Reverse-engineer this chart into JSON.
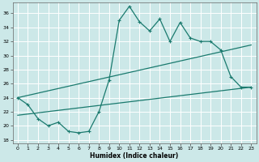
{
  "xlabel": "Humidex (Indice chaleur)",
  "xlim": [
    -0.5,
    23.5
  ],
  "ylim": [
    17.5,
    37.5
  ],
  "yticks": [
    18,
    20,
    22,
    24,
    26,
    28,
    30,
    32,
    34,
    36
  ],
  "xticks": [
    0,
    1,
    2,
    3,
    4,
    5,
    6,
    7,
    8,
    9,
    10,
    11,
    12,
    13,
    14,
    15,
    16,
    17,
    18,
    19,
    20,
    21,
    22,
    23
  ],
  "bg_color": "#cce8e8",
  "grid_color": "#b0d8d8",
  "line_color": "#1a7a6e",
  "series1_x": [
    0,
    1,
    2,
    3,
    4,
    5,
    6,
    7,
    8,
    9,
    10,
    11,
    12,
    13,
    14,
    15,
    16,
    17,
    18,
    19,
    20,
    21,
    22,
    23
  ],
  "series1_y": [
    24.0,
    23.0,
    21.0,
    20.0,
    20.5,
    19.2,
    19.0,
    19.2,
    22.0,
    26.5,
    35.0,
    37.0,
    34.8,
    33.5,
    35.2,
    32.0,
    34.7,
    32.5,
    32.0,
    32.0,
    30.8,
    27.0,
    25.5,
    25.5
  ],
  "series2_x": [
    0,
    23
  ],
  "series2_y": [
    24.0,
    31.5
  ],
  "series3_x": [
    0,
    23
  ],
  "series3_y": [
    21.5,
    25.5
  ],
  "marker_positions_s1": [
    0,
    1,
    2,
    3,
    4,
    5,
    6,
    7,
    8,
    9,
    10,
    11,
    12,
    13,
    14,
    15,
    16,
    17,
    18,
    19,
    20,
    21,
    22,
    23
  ]
}
